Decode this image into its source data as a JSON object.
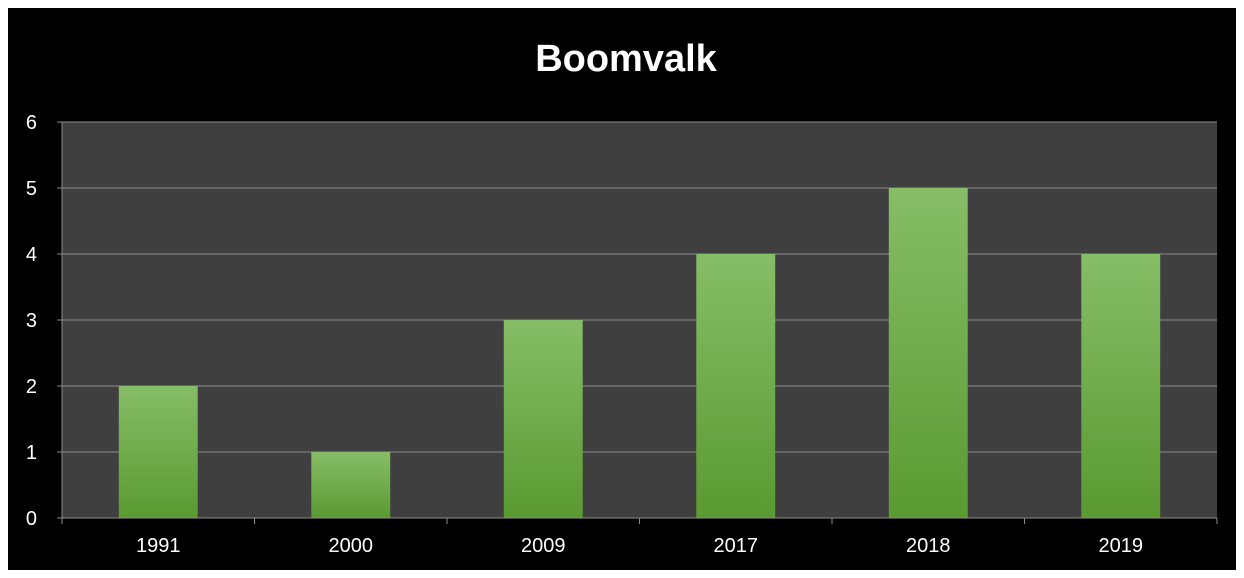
{
  "chart_data": {
    "type": "bar",
    "title": "Boomvalk",
    "xlabel": "",
    "ylabel": "",
    "categories": [
      "1991",
      "2000",
      "2009",
      "2017",
      "2018",
      "2019"
    ],
    "values": [
      2,
      1,
      3,
      4,
      5,
      4
    ],
    "ylim": [
      0,
      6
    ],
    "yticks": [
      0,
      1,
      2,
      3,
      4,
      5,
      6
    ],
    "grid": true,
    "legend": "none",
    "colors": {
      "background": "#000000",
      "plot_area": "#3f3f3f",
      "bar_top": "#86bd67",
      "bar_bottom": "#5a9a31",
      "gridline": "#8c8c8c",
      "text": "#ffffff"
    }
  }
}
